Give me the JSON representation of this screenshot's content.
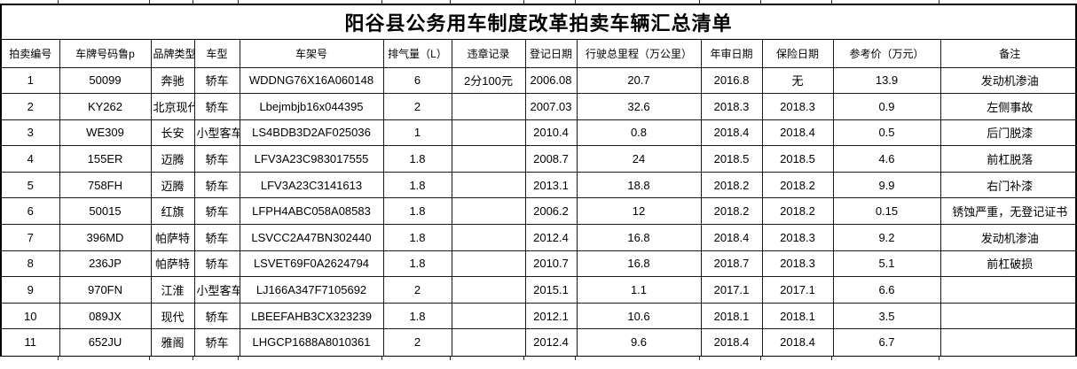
{
  "title": "阳谷县公务用车制度改革拍卖车辆汇总清单",
  "table": {
    "columns": [
      "拍卖编号",
      "车牌号码鲁p",
      "品牌类型",
      "车型",
      "车架号",
      "排气量（L）",
      "违章记录",
      "登记日期",
      "行驶总里程（万公里）",
      "年审日期",
      "保险日期",
      "参考价（万元）",
      "备注"
    ],
    "rows": [
      [
        "1",
        "50099",
        "奔驰",
        "轿车",
        "WDDNG76X16A060148",
        "6",
        "2分100元",
        "2006.08",
        "20.7",
        "2016.8",
        "无",
        "13.9",
        "发动机渗油"
      ],
      [
        "2",
        "KY262",
        "北京现代",
        "轿车",
        "Lbejmbjb16x044395",
        "2",
        "",
        "2007.03",
        "32.6",
        "2018.3",
        "2018.3",
        "0.9",
        "左侧事故"
      ],
      [
        "3",
        "WE309",
        "长安",
        "小型客车",
        "LS4BDB3D2AF025036",
        "1",
        "",
        "2010.4",
        "0.8",
        "2018.4",
        "2018.4",
        "0.5",
        "后门脱漆"
      ],
      [
        "4",
        "155ER",
        "迈腾",
        "轿车",
        "LFV3A23C983017555",
        "1.8",
        "",
        "2008.7",
        "24",
        "2018.5",
        "2018.5",
        "4.6",
        "前杠脱落"
      ],
      [
        "5",
        "758FH",
        "迈腾",
        "轿车",
        "LFV3A23C3141613",
        "1.8",
        "",
        "2013.1",
        "18.8",
        "2018.2",
        "2018.2",
        "9.9",
        "右门补漆"
      ],
      [
        "6",
        "50015",
        "红旗",
        "轿车",
        "LFPH4ABC058A08583",
        "1.8",
        "",
        "2006.2",
        "12",
        "2018.2",
        "2018.2",
        "0.15",
        "锈蚀严重，无登记证书"
      ],
      [
        "7",
        "396MD",
        "帕萨特",
        "轿车",
        "LSVCC2A47BN302440",
        "1.8",
        "",
        "2012.4",
        "16.8",
        "2018.4",
        "2018.3",
        "9.2",
        "发动机渗油"
      ],
      [
        "8",
        "236JP",
        "帕萨特",
        "轿车",
        "LSVET69F0A2624794",
        "1.8",
        "",
        "2010.7",
        "16.8",
        "2018.7",
        "2018.3",
        "5.1",
        "前杠破损"
      ],
      [
        "9",
        "970FN",
        "江淮",
        "小型客车",
        "LJ166A347F7105692",
        "2",
        "",
        "2015.1",
        "1.1",
        "2017.1",
        "2017.1",
        "6.6",
        ""
      ],
      [
        "10",
        "089JX",
        "现代",
        "轿车",
        "LBEEFAHB3CX323239",
        "1.8",
        "",
        "2012.1",
        "10.6",
        "2018.1",
        "2018.1",
        "3.5",
        ""
      ],
      [
        "11",
        "652JU",
        "雅阁",
        "轿车",
        "LHGCP1688A8010361",
        "2",
        "",
        "2012.4",
        "9.6",
        "2018.4",
        "2018.4",
        "6.7",
        ""
      ]
    ]
  },
  "colors": {
    "grid_line": "#1a1a1a",
    "outer_border": "#000000",
    "text": "#000000",
    "background": "#ffffff"
  }
}
